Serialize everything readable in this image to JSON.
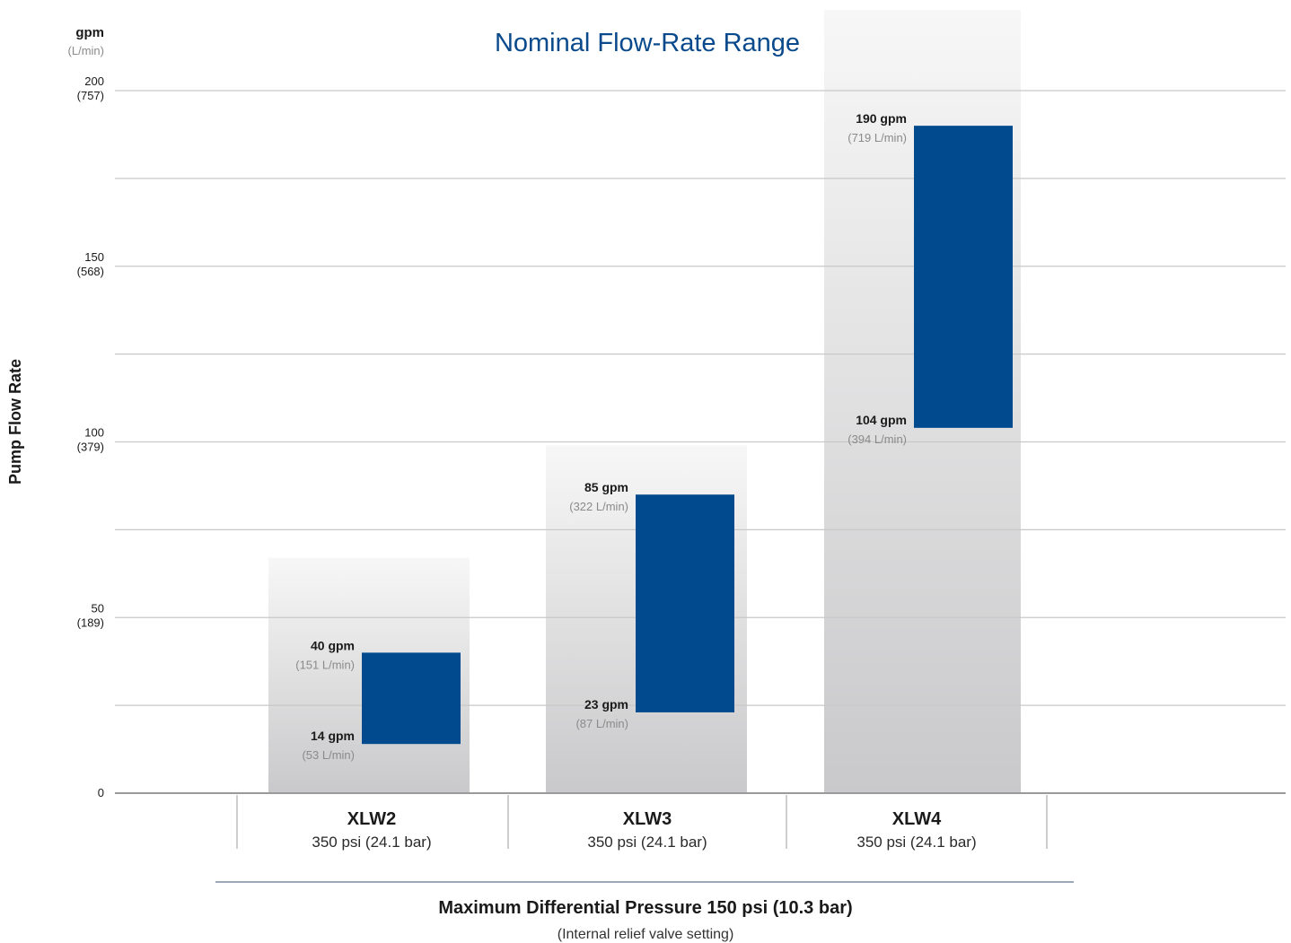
{
  "colors": {
    "bar": "#024a8e",
    "title": "#0a4a8c",
    "grid": "#c8c8c8",
    "axis": "#9a9a9a",
    "text": "#1a1a1a",
    "muted": "#8a8a8a",
    "column_top": "#f7f7f7",
    "column_bottom": "#c9c9cb",
    "footer_rule": "#7c8aa0"
  },
  "chart_data": {
    "type": "bar",
    "subtype": "floating-range",
    "title": "Nominal Flow-Rate Range",
    "ylabel": "Pump Flow Rate",
    "yunit": "gpm",
    "yunit_secondary": "(L/min)",
    "ylim": [
      0,
      200
    ],
    "yticks": [
      {
        "value": 0,
        "label": "0",
        "sub": ""
      },
      {
        "value": 50,
        "label": "50",
        "sub": "(189)"
      },
      {
        "value": 100,
        "label": "100",
        "sub": "(379)"
      },
      {
        "value": 150,
        "label": "150",
        "sub": "(568)"
      },
      {
        "value": 200,
        "label": "200",
        "sub": "(757)"
      }
    ],
    "minor_gridlines": [
      25,
      75,
      125,
      175
    ],
    "grid": true,
    "categories": [
      "XLW2",
      "XLW3",
      "XLW4"
    ],
    "category_subtitles": [
      "350 psi (24.1 bar)",
      "350 psi (24.1 bar)",
      "350 psi (24.1 bar)"
    ],
    "background_columns": [
      {
        "category": "XLW2",
        "top": 67
      },
      {
        "category": "XLW3",
        "top": 99
      },
      {
        "category": "XLW4",
        "top": 223
      }
    ],
    "series": [
      {
        "ranges": [
          {
            "category": "XLW2",
            "low": 14,
            "high": 40,
            "low_label": "14 gpm",
            "low_sub": "(53 L/min)",
            "high_label": "40 gpm",
            "high_sub": "(151 L/min)"
          },
          {
            "category": "XLW3",
            "low": 23,
            "high": 85,
            "low_label": "23 gpm",
            "low_sub": "(87 L/min)",
            "high_label": "85 gpm",
            "high_sub": "(322 L/min)"
          },
          {
            "category": "XLW4",
            "low": 104,
            "high": 190,
            "low_label": "104 gpm",
            "low_sub": "(394 L/min)",
            "high_label": "190 gpm",
            "high_sub": "(719 L/min)"
          }
        ]
      }
    ],
    "footer": {
      "title": "Maximum Differential Pressure 150 psi (10.3 bar)",
      "subtitle": "(Internal relief valve setting)"
    }
  }
}
